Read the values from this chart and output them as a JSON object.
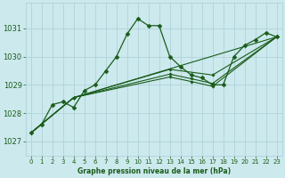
{
  "title": "Graphe pression niveau de la mer (hPa)",
  "bg_color": "#cce9ed",
  "grid_color": "#aacfd6",
  "line_color": "#1a5c1a",
  "xlim": [
    -0.5,
    23.5
  ],
  "ylim": [
    1026.5,
    1031.9
  ],
  "yticks": [
    1027,
    1028,
    1029,
    1030,
    1031
  ],
  "xticks": [
    0,
    1,
    2,
    3,
    4,
    5,
    6,
    7,
    8,
    9,
    10,
    11,
    12,
    13,
    14,
    15,
    16,
    17,
    18,
    19,
    20,
    21,
    22,
    23
  ],
  "main_x": [
    0,
    1,
    2,
    3,
    4,
    5,
    6,
    7,
    8,
    9,
    10,
    11,
    12,
    13,
    14,
    15,
    16,
    17,
    18,
    19,
    20,
    21,
    22,
    23
  ],
  "main_y": [
    1027.3,
    1027.6,
    1028.3,
    1028.4,
    1028.2,
    1028.8,
    1029.0,
    1029.5,
    1030.0,
    1030.8,
    1031.35,
    1031.1,
    1031.1,
    1030.0,
    1029.65,
    1029.35,
    1029.25,
    1029.0,
    1029.0,
    1030.0,
    1030.4,
    1030.6,
    1030.85,
    1030.7
  ],
  "fan_lines": [
    {
      "x": [
        0,
        4,
        23
      ],
      "y": [
        1027.3,
        1028.55,
        1030.7
      ]
    },
    {
      "x": [
        0,
        4,
        13,
        17,
        23
      ],
      "y": [
        1027.3,
        1028.55,
        1029.55,
        1029.35,
        1030.7
      ]
    },
    {
      "x": [
        0,
        4,
        13,
        15,
        17,
        23
      ],
      "y": [
        1027.3,
        1028.55,
        1029.38,
        1029.22,
        1029.05,
        1030.7
      ]
    },
    {
      "x": [
        0,
        4,
        13,
        15,
        17,
        23
      ],
      "y": [
        1027.3,
        1028.55,
        1029.28,
        1029.12,
        1028.95,
        1030.7
      ]
    }
  ]
}
